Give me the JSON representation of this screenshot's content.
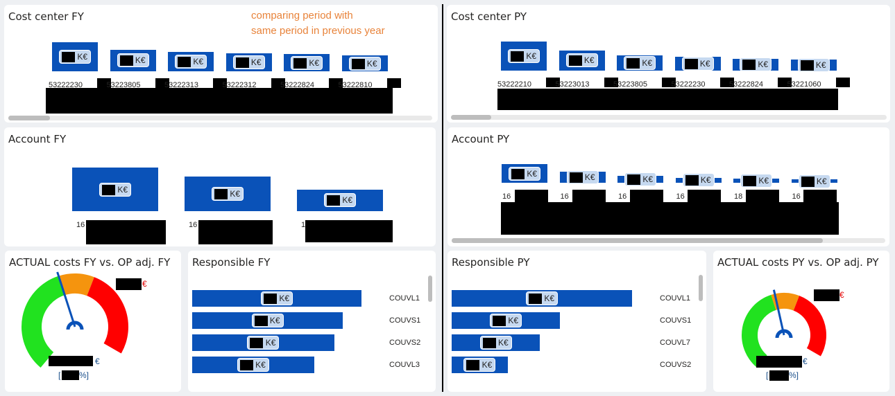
{
  "note_lines": [
    "comparing period with",
    "same period in previous year"
  ],
  "unit_label": "K€",
  "cost_center_fy": {
    "title": "Cost center FY",
    "items": [
      {
        "label": "53222230",
        "level": 1.0
      },
      {
        "label": "53223805",
        "level": 0.62
      },
      {
        "label": "53222313",
        "level": 0.5
      },
      {
        "label": "53222312",
        "level": 0.42
      },
      {
        "label": "53222824",
        "level": 0.38
      },
      {
        "label": "53222810",
        "level": 0.32
      }
    ]
  },
  "cost_center_py": {
    "title": "Cost center PY",
    "items": [
      {
        "label": "53222210",
        "level": 1.0
      },
      {
        "label": "53223013",
        "level": 0.6
      },
      {
        "label": "53223805",
        "level": 0.38
      },
      {
        "label": "53222230",
        "level": 0.3
      },
      {
        "label": "53222824",
        "level": 0.22
      },
      {
        "label": "53221060",
        "level": 0.2
      }
    ]
  },
  "account_fy": {
    "title": "Account FY",
    "items": [
      {
        "label": "16",
        "level": 1.0
      },
      {
        "label": "16",
        "level": 0.72
      },
      {
        "label": "16",
        "level": 0.3
      }
    ]
  },
  "account_py": {
    "title": "Account PY",
    "items": [
      {
        "label": "16",
        "level": 1.0
      },
      {
        "label": "16",
        "level": 0.55
      },
      {
        "label": "16",
        "level": 0.3
      },
      {
        "label": "16",
        "level": 0.17
      },
      {
        "label": "18",
        "level": 0.12
      },
      {
        "label": "16",
        "level": 0.08
      }
    ]
  },
  "gauge_fy": {
    "title": "ACTUAL costs FY vs. OP adj. FY",
    "currency": "€",
    "pct_open": "[",
    "pct_close": "%]",
    "needle_fraction": 0.47
  },
  "gauge_py": {
    "title": "ACTUAL costs PY vs. OP adj. PY",
    "currency": "€",
    "pct_open": "[",
    "pct_close": "%]",
    "needle_fraction": 0.49
  },
  "responsible_fy": {
    "title": "Responsible FY",
    "rows": [
      {
        "label": "COUVL1",
        "level": 1.0
      },
      {
        "label": "COUVS1",
        "level": 0.89
      },
      {
        "label": "COUVS2",
        "level": 0.84
      },
      {
        "label": "COUVL3",
        "level": 0.72
      }
    ]
  },
  "responsible_py": {
    "title": "Responsible PY",
    "rows": [
      {
        "label": "COUVL1",
        "level": 1.0
      },
      {
        "label": "COUVS1",
        "level": 0.6
      },
      {
        "label": "COUVL7",
        "level": 0.49
      },
      {
        "label": "COUVS2",
        "level": 0.31
      }
    ]
  }
}
